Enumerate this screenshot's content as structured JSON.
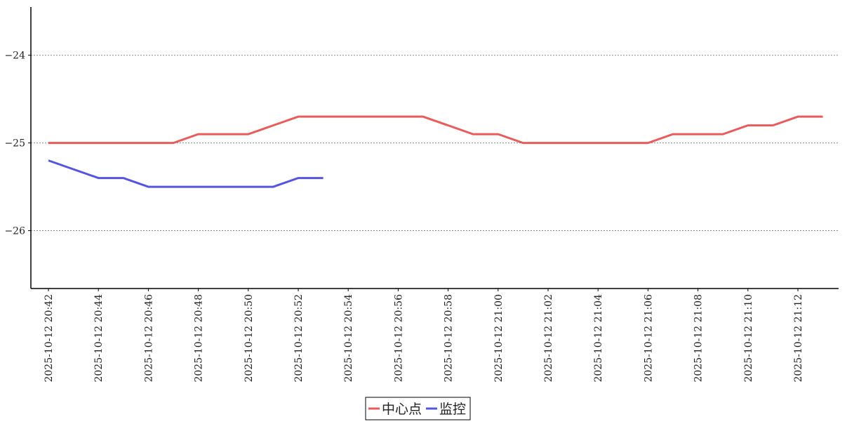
{
  "chart_data": {
    "type": "line",
    "x": [
      "2025-10-12 20:42",
      "2025-10-12 20:43",
      "2025-10-12 20:44",
      "2025-10-12 20:45",
      "2025-10-12 20:46",
      "2025-10-12 20:47",
      "2025-10-12 20:48",
      "2025-10-12 20:49",
      "2025-10-12 20:50",
      "2025-10-12 20:51",
      "2025-10-12 20:52",
      "2025-10-12 20:53",
      "2025-10-12 20:54",
      "2025-10-12 20:55",
      "2025-10-12 20:56",
      "2025-10-12 20:57",
      "2025-10-12 20:58",
      "2025-10-12 20:59",
      "2025-10-12 21:00",
      "2025-10-12 21:01",
      "2025-10-12 21:02",
      "2025-10-12 21:03",
      "2025-10-12 21:04",
      "2025-10-12 21:05",
      "2025-10-12 21:06",
      "2025-10-12 21:07",
      "2025-10-12 21:08",
      "2025-10-12 21:09",
      "2025-10-12 21:10",
      "2025-10-12 21:11",
      "2025-10-12 21:12",
      "2025-10-12 21:13"
    ],
    "xticks": [
      "2025-10-12 20:42",
      "2025-10-12 20:44",
      "2025-10-12 20:46",
      "2025-10-12 20:48",
      "2025-10-12 20:50",
      "2025-10-12 20:52",
      "2025-10-12 20:54",
      "2025-10-12 20:56",
      "2025-10-12 20:58",
      "2025-10-12 21:00",
      "2025-10-12 21:02",
      "2025-10-12 21:04",
      "2025-10-12 21:06",
      "2025-10-12 21:08",
      "2025-10-12 21:10",
      "2025-10-12 21:12"
    ],
    "series": [
      {
        "name": "中心点",
        "color": "#e85c5c",
        "values": [
          -25,
          -25,
          -25,
          -25,
          -25,
          -25,
          -24.9,
          -24.9,
          -24.9,
          -24.8,
          -24.7,
          -24.7,
          -24.7,
          -24.7,
          -24.7,
          -24.7,
          -24.8,
          -24.9,
          -24.9,
          -25,
          -25,
          -25,
          -25,
          -25,
          -25,
          -24.9,
          -24.9,
          -24.9,
          -24.8,
          -24.8,
          -24.7,
          -24.7
        ]
      },
      {
        "name": "监控",
        "color": "#5555e0",
        "values": [
          -25.2,
          -25.3,
          -25.4,
          -25.4,
          -25.5,
          -25.5,
          -25.5,
          -25.5,
          -25.5,
          -25.5,
          -25.4,
          -25.4,
          null,
          null,
          null,
          null,
          null,
          null,
          null,
          null,
          null,
          null,
          null,
          null,
          null,
          null,
          null,
          null,
          null,
          null,
          null,
          null
        ]
      }
    ],
    "ylim": [
      -26.66,
      -23.45
    ],
    "yticks": [
      {
        "value": -26,
        "label": "−26"
      },
      {
        "value": -25,
        "label": "−25"
      },
      {
        "value": -24,
        "label": "−24"
      }
    ],
    "grid": true,
    "legend": "bottom"
  }
}
